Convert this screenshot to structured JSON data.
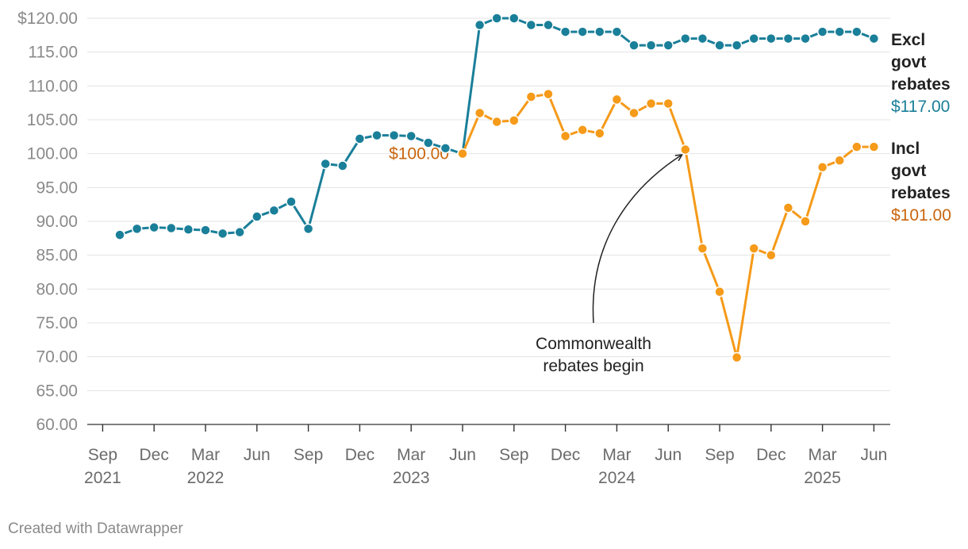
{
  "chart_data": {
    "type": "line",
    "title": "",
    "xlabel": "",
    "ylabel": "",
    "ylim": [
      60,
      120
    ],
    "yticks": [
      "$120.00",
      "115.00",
      "110.00",
      "105.00",
      "100.00",
      "95.00",
      "90.00",
      "85.00",
      "80.00",
      "75.00",
      "70.00",
      "65.00",
      "60.00"
    ],
    "xticks": [
      {
        "date": "2021-09",
        "month": "Sep",
        "year": "2021"
      },
      {
        "date": "2021-12",
        "month": "Dec",
        "year": ""
      },
      {
        "date": "2022-03",
        "month": "Mar",
        "year": "2022"
      },
      {
        "date": "2022-06",
        "month": "Jun",
        "year": ""
      },
      {
        "date": "2022-09",
        "month": "Sep",
        "year": ""
      },
      {
        "date": "2022-12",
        "month": "Dec",
        "year": ""
      },
      {
        "date": "2023-03",
        "month": "Mar",
        "year": "2023"
      },
      {
        "date": "2023-06",
        "month": "Jun",
        "year": ""
      },
      {
        "date": "2023-09",
        "month": "Sep",
        "year": ""
      },
      {
        "date": "2023-12",
        "month": "Dec",
        "year": ""
      },
      {
        "date": "2024-03",
        "month": "Mar",
        "year": "2024"
      },
      {
        "date": "2024-06",
        "month": "Jun",
        "year": ""
      },
      {
        "date": "2024-09",
        "month": "Sep",
        "year": ""
      },
      {
        "date": "2024-12",
        "month": "Dec",
        "year": ""
      },
      {
        "date": "2025-03",
        "month": "Mar",
        "year": "2025"
      },
      {
        "date": "2025-06",
        "month": "Jun",
        "year": ""
      }
    ],
    "grid": true,
    "series": [
      {
        "name": "Excl govt rebates",
        "name_lines": [
          "Excl",
          "govt",
          "rebates"
        ],
        "end_label": "$117.00",
        "color": "#1a7f99",
        "label_color": "#1a7f99",
        "x": [
          "2021-10",
          "2021-11",
          "2021-12",
          "2022-01",
          "2022-02",
          "2022-03",
          "2022-04",
          "2022-05",
          "2022-06",
          "2022-07",
          "2022-08",
          "2022-09",
          "2022-10",
          "2022-11",
          "2022-12",
          "2023-01",
          "2023-02",
          "2023-03",
          "2023-04",
          "2023-05",
          "2023-06",
          "2023-07",
          "2023-08",
          "2023-09",
          "2023-10",
          "2023-11",
          "2023-12",
          "2024-01",
          "2024-02",
          "2024-03",
          "2024-04",
          "2024-05",
          "2024-06",
          "2024-07",
          "2024-08",
          "2024-09",
          "2024-10",
          "2024-11",
          "2024-12",
          "2025-01",
          "2025-02",
          "2025-03",
          "2025-04",
          "2025-05",
          "2025-06"
        ],
        "values": [
          88.0,
          88.9,
          89.1,
          89.0,
          88.8,
          88.7,
          88.2,
          88.4,
          90.7,
          91.6,
          92.9,
          88.9,
          98.5,
          98.2,
          102.2,
          102.7,
          102.7,
          102.6,
          101.6,
          100.8,
          100.0,
          119.0,
          120.0,
          120.0,
          119.0,
          119.0,
          118.0,
          118.0,
          118.0,
          118.0,
          116.0,
          116.0,
          116.0,
          117.0,
          117.0,
          116.0,
          116.0,
          117.0,
          117.0,
          117.0,
          117.0,
          118.0,
          118.0,
          118.0,
          117.0
        ]
      },
      {
        "name": "Incl govt rebates",
        "name_lines": [
          "Incl",
          "govt",
          "rebates"
        ],
        "end_label": "$101.00",
        "color": "#f59a19",
        "label_color": "#c9650d",
        "x": [
          "2023-06",
          "2023-07",
          "2023-08",
          "2023-09",
          "2023-10",
          "2023-11",
          "2023-12",
          "2024-01",
          "2024-02",
          "2024-03",
          "2024-04",
          "2024-05",
          "2024-06",
          "2024-07",
          "2024-08",
          "2024-09",
          "2024-10",
          "2024-11",
          "2024-12",
          "2025-01",
          "2025-02",
          "2025-03",
          "2025-04",
          "2025-05",
          "2025-06"
        ],
        "values": [
          100.0,
          106.0,
          104.7,
          104.9,
          108.4,
          108.8,
          102.6,
          103.5,
          103.0,
          108.0,
          106.0,
          107.4,
          107.4,
          100.6,
          86.0,
          79.6,
          69.9,
          86.0,
          85.0,
          92.0,
          90.0,
          98.0,
          99.0,
          101.0,
          101.0
        ]
      }
    ],
    "annotations": [
      {
        "text": "$100.00",
        "at": "2023-06",
        "value": 100.0,
        "color": "#c9650d"
      },
      {
        "text_lines": [
          "Commonwealth",
          "rebates begin"
        ],
        "points_to": "2024-07",
        "value": 100.6
      }
    ]
  },
  "footer": {
    "credit": "Created with Datawrapper"
  }
}
